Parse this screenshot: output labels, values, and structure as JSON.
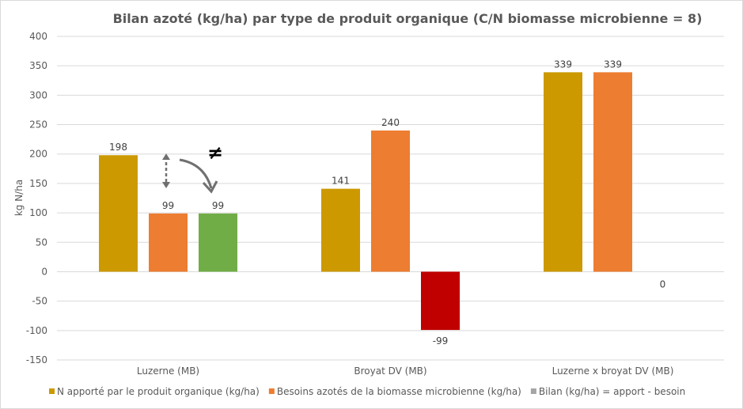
{
  "chart_data": {
    "type": "bar",
    "title": "Bilan azoté (kg/ha) par type de produit organique (C/N biomasse microbienne = 8)",
    "xlabel": "",
    "ylabel": "kg N/ha",
    "ylim": [
      -150,
      400
    ],
    "yticks": [
      400,
      350,
      300,
      250,
      200,
      150,
      100,
      50,
      0,
      -50,
      -100,
      -150
    ],
    "grid": true,
    "legend_position": "bottom",
    "categories": [
      "Luzerne (MB)",
      "Broyat DV (MB)",
      "Luzerne x broyat DV (MB)"
    ],
    "series": [
      {
        "name": "N apporté par le produit organique (kg/ha)",
        "color": "#CC9900",
        "values": [
          198,
          141,
          339
        ]
      },
      {
        "name": "Besoins azotés de la biomasse microbienne (kg/ha)",
        "color": "#ED7D31",
        "values": [
          99,
          240,
          339
        ]
      },
      {
        "name": "Bilan (kg/ha) = apport - besoin",
        "color": "#A5A5A5",
        "values": [
          99,
          -99,
          0
        ],
        "point_colors": [
          "#70AD47",
          "#C00000",
          "#A5A5A5"
        ]
      }
    ],
    "annotations": [
      "≠"
    ]
  }
}
